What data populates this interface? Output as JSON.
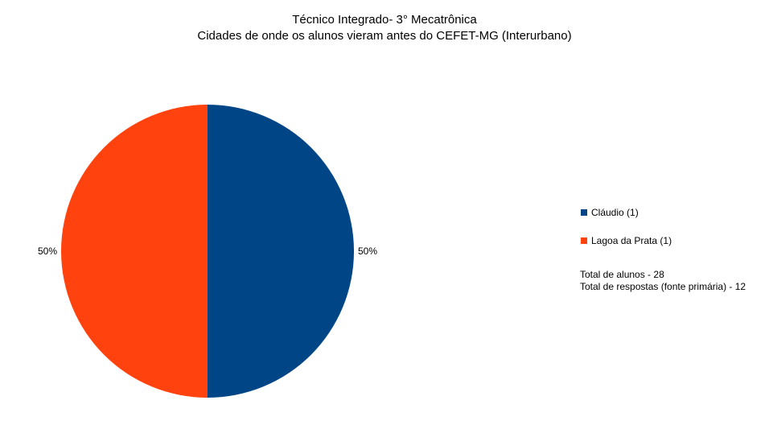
{
  "chart_data": {
    "type": "pie",
    "title": "Técnico Integrado- 3° Mecatrônica",
    "subtitle": "Cidades de onde os alunos vieram antes do CEFET-MG (Interurbano)",
    "categories": [
      "Cláudio (1)",
      "Lagoa da Prata (1)"
    ],
    "values": [
      1,
      1
    ],
    "percent_labels": [
      "50%",
      "50%"
    ],
    "colors": [
      "#004586",
      "#ff420e"
    ],
    "legend": "right",
    "notes": [
      "Total de alunos - 28",
      "Total de respostas (fonte primária) - 12"
    ]
  }
}
